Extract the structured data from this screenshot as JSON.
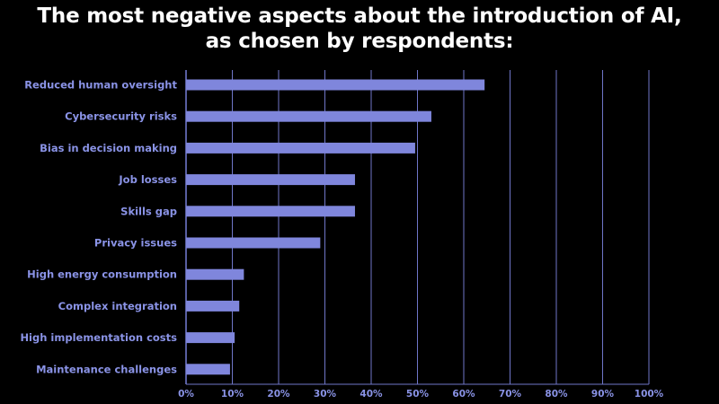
{
  "title_lines": [
    "The most negative aspects about the introduction of AI,",
    "as chosen by respondents:"
  ],
  "chart_data": {
    "type": "bar",
    "orientation": "horizontal",
    "categories": [
      "Reduced human oversight",
      "Cybersecurity risks",
      "Bias in decision making",
      "Job losses",
      "Skills gap",
      "Privacy issues",
      "High energy consumption",
      "Complex integration",
      "High implementation costs",
      "Maintenance challenges"
    ],
    "values": [
      64.5,
      53,
      49.5,
      36.5,
      36.5,
      29,
      12.5,
      11.5,
      10.5,
      9.5
    ],
    "xlim": [
      0,
      100
    ],
    "xticks": [
      0,
      10,
      20,
      30,
      40,
      50,
      60,
      70,
      80,
      90,
      100
    ],
    "tick_format": "%",
    "grid": true,
    "bar_color": "#7f86dc",
    "label_color": "#8a93e6",
    "grid_color": "#6f76c8",
    "background": "#000000"
  }
}
